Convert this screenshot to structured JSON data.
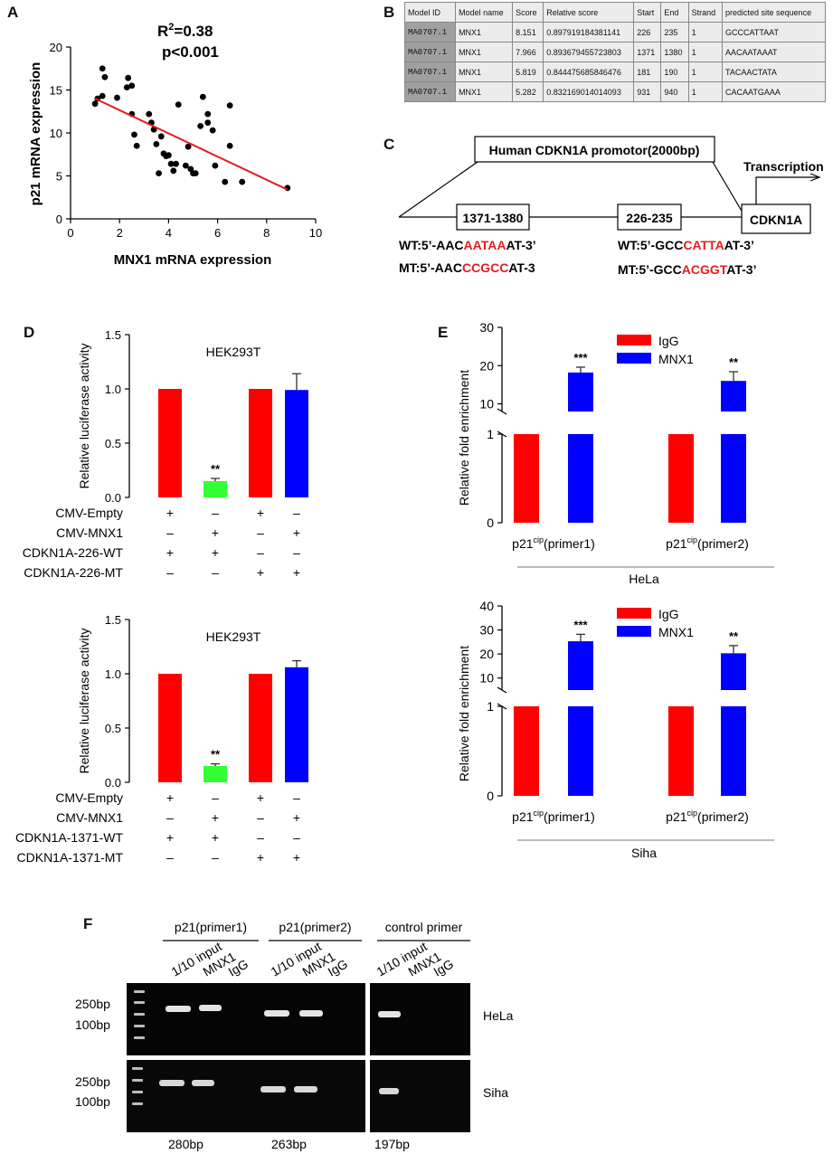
{
  "panels": {
    "A": "A",
    "B": "B",
    "C": "C",
    "D": "D",
    "E": "E",
    "F": "F"
  },
  "panelA": {
    "stats_r2_prefix": "R",
    "stats_r2_sup": "2",
    "stats_r2_value": "=0.38",
    "stats_p": "p<0.001",
    "chart_data": {
      "type": "scatter",
      "xlabel": "MNX1 mRNA expression",
      "ylabel": "p21 mRNA expression",
      "xlim": [
        0,
        10
      ],
      "ylim": [
        0,
        20
      ],
      "xticks": [
        "0",
        "2",
        "4",
        "6",
        "8",
        "10"
      ],
      "yticks": [
        "0",
        "5",
        "10",
        "15",
        "20"
      ],
      "points": [
        [
          1.0,
          13.4
        ],
        [
          1.1,
          14.0
        ],
        [
          1.3,
          14.3
        ],
        [
          1.3,
          17.5
        ],
        [
          1.4,
          16.5
        ],
        [
          1.9,
          14.1
        ],
        [
          2.3,
          15.3
        ],
        [
          2.35,
          16.4
        ],
        [
          2.5,
          15.5
        ],
        [
          2.5,
          12.2
        ],
        [
          2.6,
          9.8
        ],
        [
          2.7,
          8.5
        ],
        [
          3.2,
          12.2
        ],
        [
          3.3,
          11.2
        ],
        [
          3.4,
          10.4
        ],
        [
          3.5,
          8.7
        ],
        [
          3.6,
          5.3
        ],
        [
          3.7,
          9.6
        ],
        [
          3.8,
          7.6
        ],
        [
          3.9,
          7.3
        ],
        [
          4.0,
          7.4
        ],
        [
          4.1,
          6.4
        ],
        [
          4.2,
          5.6
        ],
        [
          4.3,
          6.4
        ],
        [
          4.4,
          13.3
        ],
        [
          4.7,
          6.2
        ],
        [
          4.8,
          8.4
        ],
        [
          4.9,
          5.8
        ],
        [
          5.0,
          5.3
        ],
        [
          5.1,
          5.3
        ],
        [
          5.3,
          10.8
        ],
        [
          5.4,
          14.2
        ],
        [
          5.6,
          11.2
        ],
        [
          5.6,
          12.2
        ],
        [
          5.8,
          10.3
        ],
        [
          5.9,
          6.2
        ],
        [
          6.3,
          4.3
        ],
        [
          6.5,
          13.2
        ],
        [
          6.5,
          8.5
        ],
        [
          7.0,
          4.3
        ],
        [
          8.85,
          3.6
        ]
      ],
      "fit_line": {
        "x": [
          1.0,
          8.85
        ],
        "y": [
          14.0,
          3.4
        ],
        "color": "#e51e1e"
      }
    }
  },
  "panelB": {
    "headers": [
      "Model ID",
      "Model name",
      "Score",
      "Relative score",
      "Start",
      "End",
      "Strand",
      "predicted site sequence"
    ],
    "rows": [
      [
        "MA0707.1",
        "MNX1",
        "8.151",
        "0.897919184381141",
        "226",
        "235",
        "1",
        "GCCCATTAAT"
      ],
      [
        "MA0707.1",
        "MNX1",
        "7.966",
        "0.893679455723803",
        "1371",
        "1380",
        "1",
        "AACAATAAAT"
      ],
      [
        "MA0707.1",
        "MNX1",
        "5.819",
        "0.844475685846476",
        "181",
        "190",
        "1",
        "TACAACTATA"
      ],
      [
        "MA0707.1",
        "MNX1",
        "5.282",
        "0.832169014014093",
        "931",
        "940",
        "1",
        "CACAATGAAA"
      ]
    ]
  },
  "panelC": {
    "promotor_label": "Human CDKN1A promotor(2000bp)",
    "site1": "1371-1380",
    "site2": "226-235",
    "gene": "CDKN1A",
    "transcription": "Transcription",
    "wt1": {
      "pre": "WT:5’-AAC",
      "mut": "AATAA",
      "post": "AT-3’"
    },
    "mt1": {
      "pre": "MT:5’-AAC",
      "mut": "CCGCC",
      "post": "AT-3"
    },
    "wt2": {
      "pre": "WT:5’-GCC",
      "mut": "CATTA",
      "post": "AT-3’"
    },
    "mt2": {
      "pre": "MT:5’-GCC",
      "mut": "ACGGT",
      "post": "AT-3’"
    }
  },
  "panelD": {
    "charts": [
      {
        "type": "bar",
        "title": "HEK293T",
        "ylabel": "Relative luciferase activity",
        "ylim": [
          0,
          1.5
        ],
        "yticks": [
          "0.0",
          "0.5",
          "1.0",
          "1.5"
        ],
        "values": [
          1.0,
          0.15,
          1.0,
          0.99
        ],
        "errors": [
          0,
          0.025,
          0,
          0.15
        ],
        "colors": [
          "#ff0000",
          "#33ff33",
          "#ff0000",
          "#0000ff"
        ],
        "annotations": [
          "",
          "**",
          "",
          ""
        ],
        "rows": [
          {
            "label": "CMV-Empty",
            "signs": [
              "+",
              "–",
              "+",
              "–"
            ]
          },
          {
            "label": "CMV-MNX1",
            "signs": [
              "–",
              "+",
              "–",
              "+"
            ]
          },
          {
            "label": "CDKN1A-226-WT",
            "signs": [
              "+",
              "+",
              "–",
              "–"
            ]
          },
          {
            "label": "CDKN1A-226-MT",
            "signs": [
              "–",
              "–",
              "+",
              "+"
            ]
          }
        ]
      },
      {
        "type": "bar",
        "title": "HEK293T",
        "ylabel": "Relative luciferase activity",
        "ylim": [
          0,
          1.5
        ],
        "yticks": [
          "0.0",
          "0.5",
          "1.0",
          "1.5"
        ],
        "values": [
          1.0,
          0.15,
          1.0,
          1.06
        ],
        "errors": [
          0,
          0.02,
          0,
          0.06
        ],
        "colors": [
          "#ff0000",
          "#33ff33",
          "#ff0000",
          "#0000ff"
        ],
        "annotations": [
          "",
          "**",
          "",
          ""
        ],
        "rows": [
          {
            "label": "CMV-Empty",
            "signs": [
              "+",
              "–",
              "+",
              "–"
            ]
          },
          {
            "label": "CMV-MNX1",
            "signs": [
              "–",
              "+",
              "–",
              "+"
            ]
          },
          {
            "label": "CDKN1A-1371-WT",
            "signs": [
              "+",
              "+",
              "–",
              "–"
            ]
          },
          {
            "label": "CDKN1A-1371-MT",
            "signs": [
              "–",
              "–",
              "+",
              "+"
            ]
          }
        ]
      }
    ]
  },
  "panelE": {
    "charts": [
      {
        "type": "bar",
        "ylabel": "Relative fold enrichment",
        "cell": "HeLa",
        "legend": [
          "IgG",
          "MNX1"
        ],
        "colors": [
          "#ff0000",
          "#0000ff"
        ],
        "lower_yticks": [
          "0",
          "1"
        ],
        "upper_yticks": [
          "10",
          "20",
          "30"
        ],
        "upper_range": [
          8,
          30
        ],
        "groups": [
          {
            "label_pre": "p21",
            "label_sup": "cip",
            "label_post": "(primer1)"
          },
          {
            "label_pre": "p21",
            "label_sup": "cip",
            "label_post": "(primer2)"
          }
        ],
        "series": [
          {
            "name": "IgG",
            "values": [
              1,
              1
            ],
            "errors": [
              0,
              0
            ]
          },
          {
            "name": "MNX1",
            "values": [
              18.2,
              16.0
            ],
            "errors": [
              1.4,
              2.4
            ]
          }
        ],
        "annotations": [
          "***",
          "**"
        ]
      },
      {
        "type": "bar",
        "ylabel": "Relative fold enrichment",
        "cell": "Siha",
        "legend": [
          "IgG",
          "MNX1"
        ],
        "colors": [
          "#ff0000",
          "#0000ff"
        ],
        "lower_yticks": [
          "0",
          "1"
        ],
        "upper_yticks": [
          "10",
          "20",
          "30",
          "40"
        ],
        "upper_range": [
          5,
          40
        ],
        "groups": [
          {
            "label_pre": "p21",
            "label_sup": "cip",
            "label_post": "(primer1)"
          },
          {
            "label_pre": "p21",
            "label_sup": "cip",
            "label_post": "(primer2)"
          }
        ],
        "series": [
          {
            "name": "IgG",
            "values": [
              1,
              1
            ],
            "errors": [
              0,
              0
            ]
          },
          {
            "name": "MNX1",
            "values": [
              25.3,
              20.3
            ],
            "errors": [
              2.9,
              3.2
            ]
          }
        ],
        "annotations": [
          "***",
          "**"
        ]
      }
    ]
  },
  "panelF": {
    "groups": [
      "p21(primer1)",
      "p21(primer2)",
      "control primer"
    ],
    "lanes": [
      "1/10 input",
      "MNX1",
      "IgG"
    ],
    "markers": [
      "250bp",
      "100bp"
    ],
    "cells": [
      "HeLa",
      "Siha"
    ],
    "sizes": [
      "280bp",
      "263bp",
      "197bp"
    ]
  }
}
